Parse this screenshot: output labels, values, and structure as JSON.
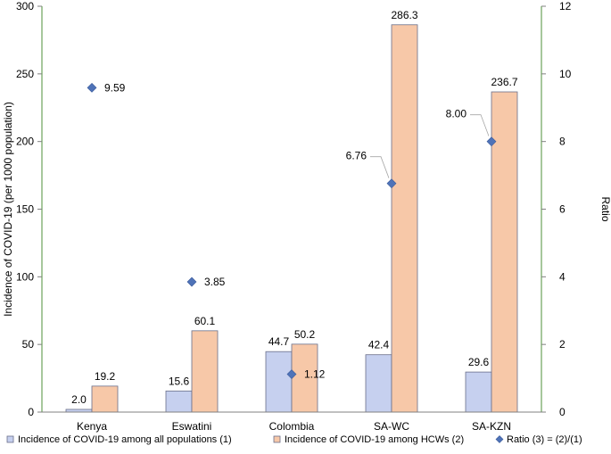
{
  "chart_data": {
    "type": "bar",
    "categories": [
      "Kenya",
      "Eswatini",
      "Colombia",
      "SA-WC",
      "SA-KZN"
    ],
    "series": [
      {
        "name": "Incidence of COVID-19 among all populations (1)",
        "axis": "left",
        "color": "#c6d0ef",
        "stroke": "#6a6f8a",
        "values": [
          2.0,
          15.6,
          44.7,
          42.4,
          29.6
        ],
        "labels": [
          "2.0",
          "15.6",
          "44.7",
          "42.4",
          "29.6"
        ]
      },
      {
        "name": "Incidence of COVID-19 among HCWs (2)",
        "axis": "left",
        "color": "#f7c8a8",
        "stroke": "#6a6f8a",
        "values": [
          19.2,
          60.1,
          50.2,
          286.3,
          236.7
        ],
        "labels": [
          "19.2",
          "60.1",
          "50.2",
          "286.3",
          "236.7"
        ]
      },
      {
        "name": "Ratio (3) = (2)/(1)",
        "axis": "right",
        "type": "scatter",
        "marker": "diamond",
        "color": "#4f73b8",
        "values": [
          9.59,
          3.85,
          1.12,
          6.76,
          8.0
        ],
        "labels": [
          "9.59",
          "3.85",
          "1.12",
          "6.76",
          "8.00"
        ]
      }
    ],
    "ylabel": "Incidence of COVID-19 (per 1000 population)",
    "y2label": "Ratio",
    "ylim": [
      0,
      300
    ],
    "yticks": [
      "0",
      "50",
      "100",
      "150",
      "200",
      "250",
      "300"
    ],
    "y2lim": [
      0,
      12
    ],
    "y2ticks": [
      "0",
      "2",
      "4",
      "6",
      "8",
      "10",
      "12"
    ],
    "legend_position": "bottom",
    "grid": false
  }
}
